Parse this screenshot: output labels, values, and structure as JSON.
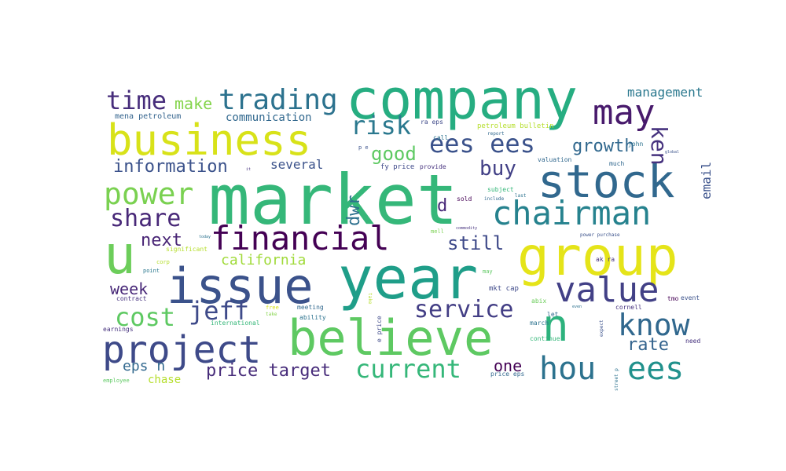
{
  "words": [
    {
      "text": "market",
      "color": "#35b779"
    },
    {
      "text": "company",
      "color": "#26ad81"
    },
    {
      "text": "year",
      "color": "#1f9e89"
    },
    {
      "text": "believe",
      "color": "#5ec962"
    },
    {
      "text": "business",
      "color": "#d8e219"
    },
    {
      "text": "stock",
      "color": "#31688e"
    },
    {
      "text": "group",
      "color": "#e5e419"
    },
    {
      "text": "issue",
      "color": "#3b528b"
    },
    {
      "text": "u",
      "color": "#6ccd5a"
    },
    {
      "text": "n",
      "color": "#2db27d"
    },
    {
      "text": "project",
      "color": "#3e4a89"
    },
    {
      "text": "chairman",
      "color": "#26828e"
    },
    {
      "text": "financial",
      "color": "#440154"
    },
    {
      "text": "may",
      "color": "#481a6c"
    },
    {
      "text": "value",
      "color": "#424086"
    },
    {
      "text": "hou",
      "color": "#2c728e"
    },
    {
      "text": "ees",
      "color": "#21918c"
    },
    {
      "text": "know",
      "color": "#31688e"
    },
    {
      "text": "power",
      "color": "#7ad151"
    },
    {
      "text": "trading",
      "color": "#2c728e"
    },
    {
      "text": "time",
      "color": "#472d7b"
    },
    {
      "text": "ees ees",
      "color": "#3b528b"
    },
    {
      "text": "risk",
      "color": "#2a788e"
    },
    {
      "text": "share",
      "color": "#482878"
    },
    {
      "text": "cost",
      "color": "#5ec962"
    },
    {
      "text": "jeff",
      "color": "#3e4a89"
    },
    {
      "text": "service",
      "color": "#433e85"
    },
    {
      "text": "current",
      "color": "#35b779"
    },
    {
      "text": "price target",
      "color": "#472c7a"
    },
    {
      "text": "ken",
      "color": "#46327e"
    },
    {
      "text": "growth",
      "color": "#31688e"
    },
    {
      "text": "information",
      "color": "#3b528b"
    },
    {
      "text": "buy",
      "color": "#424086"
    },
    {
      "text": "good",
      "color": "#5ec962"
    },
    {
      "text": "make",
      "color": "#84d44b"
    },
    {
      "text": "still",
      "color": "#3e4989"
    },
    {
      "text": "next",
      "color": "#482475"
    },
    {
      "text": "week",
      "color": "#482878"
    },
    {
      "text": "california",
      "color": "#a0da39"
    },
    {
      "text": "rate",
      "color": "#33638d"
    },
    {
      "text": "one",
      "color": "#440154"
    },
    {
      "text": "dwr",
      "color": "#2d708e"
    },
    {
      "text": "email",
      "color": "#3b528b"
    },
    {
      "text": "management",
      "color": "#2a788e"
    },
    {
      "text": "eps n",
      "color": "#31688e"
    },
    {
      "text": "several",
      "color": "#3b528b"
    },
    {
      "text": "communication",
      "color": "#31688e"
    },
    {
      "text": "mena petroleum",
      "color": "#33638d"
    },
    {
      "text": "chase",
      "color": "#b5de2b"
    },
    {
      "text": "d",
      "color": "#482878"
    },
    {
      "text": "petroleum bulletin",
      "color": "#b5de2b"
    },
    {
      "text": "ra eps",
      "color": "#3e4989"
    },
    {
      "text": "fy price",
      "color": "#3e4989"
    },
    {
      "text": "provide",
      "color": "#46327e"
    },
    {
      "text": "valuation",
      "color": "#31688e"
    },
    {
      "text": "much",
      "color": "#31688e"
    },
    {
      "text": "john",
      "color": "#2c728e"
    },
    {
      "text": "report",
      "color": "#31688e"
    },
    {
      "text": "call",
      "color": "#2c728e"
    },
    {
      "text": "subject",
      "color": "#35b779"
    },
    {
      "text": "include",
      "color": "#31688e"
    },
    {
      "text": "sold",
      "color": "#440154"
    },
    {
      "text": "global",
      "color": "#3b528b"
    },
    {
      "text": "last",
      "color": "#2c728e"
    },
    {
      "text": "mell",
      "color": "#7ad151"
    },
    {
      "text": "commodity",
      "color": "#46327e"
    },
    {
      "text": "power purchase",
      "color": "#3b528b"
    },
    {
      "text": "mkt cap",
      "color": "#3e4989"
    },
    {
      "text": "ak ra",
      "color": "#46327e"
    },
    {
      "text": "may",
      "color": "#5ec962"
    },
    {
      "text": "significant",
      "color": "#b5de2b"
    },
    {
      "text": "corp",
      "color": "#b5de2b"
    },
    {
      "text": "point",
      "color": "#2a788e"
    },
    {
      "text": "contract",
      "color": "#46327e"
    },
    {
      "text": "meeting",
      "color": "#31688e"
    },
    {
      "text": "ability",
      "color": "#2c728e"
    },
    {
      "text": "international",
      "color": "#35b779"
    },
    {
      "text": "free",
      "color": "#d8e219"
    },
    {
      "text": "take",
      "color": "#b5de2b"
    },
    {
      "text": "earnings",
      "color": "#46327e"
    },
    {
      "text": "abix",
      "color": "#6ccd5a"
    },
    {
      "text": "let",
      "color": "#31688e"
    },
    {
      "text": "march",
      "color": "#2c728e"
    },
    {
      "text": "continue",
      "color": "#35b779"
    },
    {
      "text": "cornell",
      "color": "#46327e"
    },
    {
      "text": "tmo",
      "color": "#440154"
    },
    {
      "text": "event",
      "color": "#3b528b"
    },
    {
      "text": "need",
      "color": "#46327e"
    },
    {
      "text": "street p",
      "color": "#2c728e"
    },
    {
      "text": "expect",
      "color": "#3b528b"
    },
    {
      "text": "price eps",
      "color": "#31688e"
    },
    {
      "text": "e price",
      "color": "#3e4989"
    },
    {
      "text": "employee",
      "color": "#5ec962"
    },
    {
      "text": "take",
      "color": "#84d44b"
    },
    {
      "text": "today",
      "color": "#2c728e"
    },
    {
      "text": "p e",
      "color": "#3b528b"
    },
    {
      "text": "it",
      "color": "#46327e"
    },
    {
      "text": "even",
      "color": "#2c728e"
    }
  ]
}
